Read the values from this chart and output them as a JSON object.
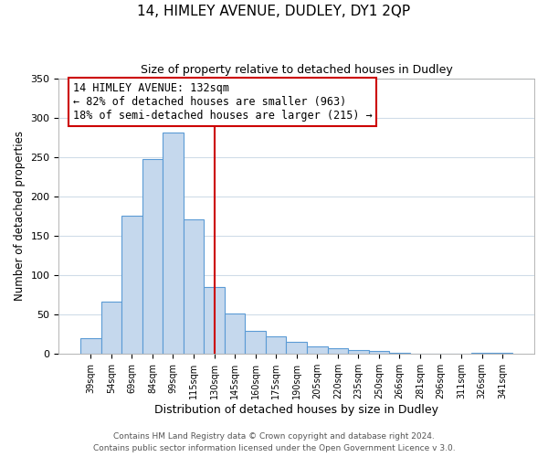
{
  "title": "14, HIMLEY AVENUE, DUDLEY, DY1 2QP",
  "subtitle": "Size of property relative to detached houses in Dudley",
  "xlabel": "Distribution of detached houses by size in Dudley",
  "ylabel": "Number of detached properties",
  "bar_labels": [
    "39sqm",
    "54sqm",
    "69sqm",
    "84sqm",
    "99sqm",
    "115sqm",
    "130sqm",
    "145sqm",
    "160sqm",
    "175sqm",
    "190sqm",
    "205sqm",
    "220sqm",
    "235sqm",
    "250sqm",
    "266sqm",
    "281sqm",
    "296sqm",
    "311sqm",
    "326sqm",
    "341sqm"
  ],
  "bar_values": [
    20,
    67,
    175,
    247,
    281,
    171,
    85,
    52,
    29,
    23,
    15,
    10,
    7,
    5,
    4,
    1,
    0,
    0,
    0,
    1,
    2
  ],
  "bar_color": "#c5d8ed",
  "bar_edge_color": "#5b9bd5",
  "vline_x": 6,
  "vline_color": "#cc0000",
  "ylim": [
    0,
    350
  ],
  "yticks": [
    0,
    50,
    100,
    150,
    200,
    250,
    300,
    350
  ],
  "annotation_title": "14 HIMLEY AVENUE: 132sqm",
  "annotation_line1": "← 82% of detached houses are smaller (963)",
  "annotation_line2": "18% of semi-detached houses are larger (215) →",
  "annotation_box_color": "#ffffff",
  "annotation_box_edge": "#cc0000",
  "footer_line1": "Contains HM Land Registry data © Crown copyright and database right 2024.",
  "footer_line2": "Contains public sector information licensed under the Open Government Licence v 3.0.",
  "grid_color": "#d0dce8",
  "background_color": "#ffffff"
}
